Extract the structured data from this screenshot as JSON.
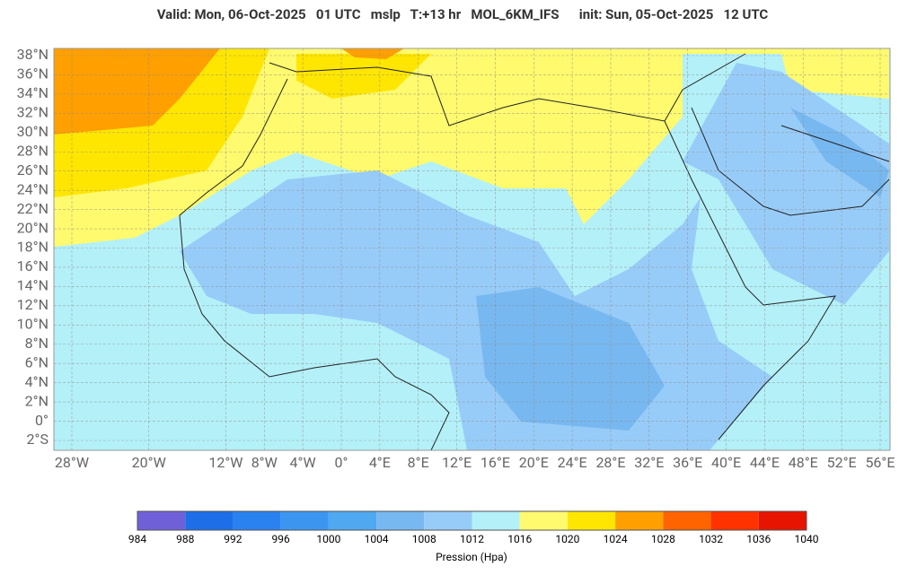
{
  "title": "Valid: Mon, 06-Oct-2025   01 UTC   mslp   T:+13 hr   MOL_6KM_IFS      init: Sun, 05-Oct-2025   12 UTC",
  "map": {
    "lat_ticks": [
      {
        "value": 38,
        "label": "38°N"
      },
      {
        "value": 36,
        "label": "36°N"
      },
      {
        "value": 34,
        "label": "34°N"
      },
      {
        "value": 32,
        "label": "32°N"
      },
      {
        "value": 30,
        "label": "30°N"
      },
      {
        "value": 28,
        "label": "28°N"
      },
      {
        "value": 26,
        "label": "26°N"
      },
      {
        "value": 24,
        "label": "24°N"
      },
      {
        "value": 22,
        "label": "22°N"
      },
      {
        "value": 20,
        "label": "20°N"
      },
      {
        "value": 18,
        "label": "18°N"
      },
      {
        "value": 16,
        "label": "16°N"
      },
      {
        "value": 14,
        "label": "14°N"
      },
      {
        "value": 12,
        "label": "12°N"
      },
      {
        "value": 10,
        "label": "10°N"
      },
      {
        "value": 8,
        "label": "8°N"
      },
      {
        "value": 6,
        "label": "6°N"
      },
      {
        "value": 4,
        "label": "4°N"
      },
      {
        "value": 2,
        "label": "2°N"
      },
      {
        "value": 0,
        "label": "0°"
      },
      {
        "value": -2,
        "label": "2°S"
      }
    ],
    "lon_ticks": [
      {
        "value": -28,
        "label": "28°W"
      },
      {
        "value": -20,
        "label": "20°W"
      },
      {
        "value": -12,
        "label": "12°W"
      },
      {
        "value": -8,
        "label": "8°W"
      },
      {
        "value": -4,
        "label": "4°W"
      },
      {
        "value": 0,
        "label": "0°"
      },
      {
        "value": 4,
        "label": "4°E"
      },
      {
        "value": 8,
        "label": "8°E"
      },
      {
        "value": 12,
        "label": "12°E"
      },
      {
        "value": 16,
        "label": "16°E"
      },
      {
        "value": 20,
        "label": "20°E"
      },
      {
        "value": 24,
        "label": "24°E"
      },
      {
        "value": 28,
        "label": "28°E"
      },
      {
        "value": 32,
        "label": "32°E"
      },
      {
        "value": 36,
        "label": "36°E"
      },
      {
        "value": 40,
        "label": "40°E"
      },
      {
        "value": 44,
        "label": "44°E"
      },
      {
        "value": 48,
        "label": "48°E"
      },
      {
        "value": 52,
        "label": "52°E"
      },
      {
        "value": 56,
        "label": "56°E"
      }
    ]
  },
  "colorbar": {
    "title": "Pression (Hpa)",
    "levels": [
      984,
      988,
      992,
      996,
      1000,
      1004,
      1008,
      1012,
      1016,
      1020,
      1024,
      1028,
      1032,
      1036,
      1040
    ],
    "colors": [
      "#7060d8",
      "#1e6ee8",
      "#2a82f0",
      "#3c96f0",
      "#50a8f0",
      "#78b8f0",
      "#98ccf8",
      "#b4f0f8",
      "#fffa6e",
      "#ffe600",
      "#ffa000",
      "#ff6400",
      "#ff3200",
      "#e61400"
    ]
  }
}
